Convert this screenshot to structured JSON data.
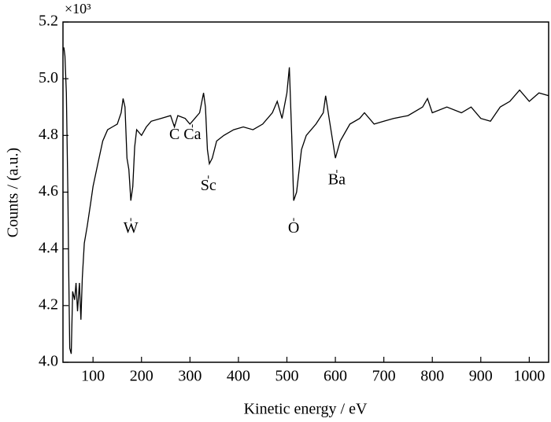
{
  "chart_data": {
    "type": "line",
    "color": "#000000",
    "xlabel": "Kinetic energy / eV",
    "ylabel": "Counts / (a.u.)",
    "y_multiplier": "×10³",
    "x": [
      38,
      40,
      42,
      45,
      48,
      50,
      52,
      55,
      58,
      62,
      65,
      68,
      72,
      75,
      78,
      82,
      88,
      95,
      100,
      110,
      120,
      130,
      140,
      150,
      158,
      162,
      166,
      170,
      174,
      178,
      182,
      186,
      190,
      200,
      210,
      220,
      240,
      260,
      268,
      275,
      290,
      300,
      310,
      320,
      328,
      332,
      336,
      340,
      346,
      355,
      370,
      390,
      410,
      430,
      450,
      470,
      480,
      490,
      500,
      505,
      510,
      514,
      520,
      530,
      540,
      560,
      575,
      580,
      588,
      600,
      610,
      630,
      650,
      660,
      680,
      700,
      720,
      750,
      780,
      790,
      800,
      830,
      860,
      880,
      900,
      920,
      940,
      960,
      980,
      1000,
      1020,
      1040
    ],
    "values": [
      5.1,
      5.11,
      5.08,
      4.95,
      4.6,
      4.3,
      4.05,
      4.03,
      4.25,
      4.22,
      4.28,
      4.18,
      4.28,
      4.15,
      4.3,
      4.42,
      4.48,
      4.56,
      4.62,
      4.7,
      4.78,
      4.82,
      4.83,
      4.84,
      4.88,
      4.93,
      4.9,
      4.72,
      4.68,
      4.57,
      4.62,
      4.76,
      4.82,
      4.8,
      4.83,
      4.85,
      4.86,
      4.87,
      4.83,
      4.87,
      4.86,
      4.84,
      4.86,
      4.88,
      4.95,
      4.9,
      4.75,
      4.7,
      4.72,
      4.78,
      4.8,
      4.82,
      4.83,
      4.82,
      4.84,
      4.88,
      4.92,
      4.86,
      4.95,
      5.04,
      4.8,
      4.57,
      4.6,
      4.75,
      4.8,
      4.84,
      4.88,
      4.94,
      4.85,
      4.72,
      4.78,
      4.84,
      4.86,
      4.88,
      4.84,
      4.85,
      4.86,
      4.87,
      4.9,
      4.93,
      4.88,
      4.9,
      4.88,
      4.9,
      4.86,
      4.85,
      4.9,
      4.92,
      4.96,
      4.92,
      4.95,
      4.94
    ],
    "xlim": [
      38,
      1040
    ],
    "ylim": [
      4.0,
      5.2
    ],
    "xticks": [
      100,
      200,
      300,
      400,
      500,
      600,
      700,
      800,
      900,
      1000
    ],
    "yticks": [
      {
        "value": 4.0,
        "label": "4.0"
      },
      {
        "value": 4.2,
        "label": "4.2"
      },
      {
        "value": 4.4,
        "label": "4.4"
      },
      {
        "value": 4.6,
        "label": "4.6"
      },
      {
        "value": 4.8,
        "label": "4.8"
      },
      {
        "value": 5.0,
        "label": "5.0"
      },
      {
        "value": 5.2,
        "label": "5.2"
      }
    ],
    "annotations": [
      {
        "text": "W",
        "x": 178,
        "y": 4.47
      },
      {
        "text": "C",
        "x": 268,
        "y": 4.8
      },
      {
        "text": "Ca",
        "x": 305,
        "y": 4.8
      },
      {
        "text": "Sc",
        "x": 338,
        "y": 4.62
      },
      {
        "text": "O",
        "x": 514,
        "y": 4.47
      },
      {
        "text": "Ba",
        "x": 603,
        "y": 4.64
      }
    ]
  }
}
